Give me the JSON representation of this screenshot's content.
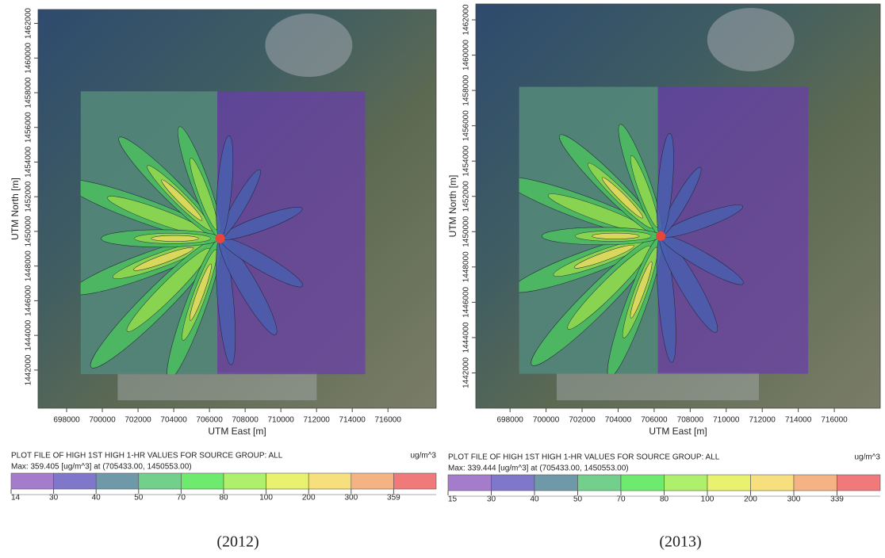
{
  "panels": [
    {
      "caption": "(2012)",
      "x_label": "UTM East [m]",
      "y_label": "UTM North [m]",
      "xlim": [
        696400,
        718700
      ],
      "ylim": [
        1439800,
        1462800
      ],
      "xticks": [
        698000,
        700000,
        702000,
        704000,
        706000,
        708000,
        710000,
        712000,
        714000,
        716000
      ],
      "yticks": [
        1442000,
        1444000,
        1446000,
        1448000,
        1450000,
        1452000,
        1454000,
        1456000,
        1458000,
        1460000,
        1462000
      ],
      "legend": {
        "title": "PLOT FILE OF HIGH 1ST HIGH 1-HR VALUES FOR SOURCE GROUP: ALL",
        "units": "ug/m^3",
        "max_note": "Max:  359.405  [ug/m^3]  at  (705433.00, 1450553.00)",
        "levels": [
          14,
          30,
          40,
          50,
          70,
          80,
          100,
          200,
          300,
          359
        ],
        "colors": [
          "#a57ccc",
          "#7f77c9",
          "#6f98a8",
          "#72cf8c",
          "#6eea6e",
          "#aef06c",
          "#e9f26e",
          "#f6df7c",
          "#f5b384",
          "#f07a7a"
        ]
      }
    },
    {
      "caption": "(2013)",
      "x_label": "UTM East [m]",
      "y_label": "UTM North [m]",
      "xlim": [
        696100,
        718550
      ],
      "ylim": [
        1440000,
        1462900
      ],
      "xticks": [
        698000,
        700000,
        702000,
        704000,
        706000,
        708000,
        710000,
        712000,
        714000,
        716000
      ],
      "yticks": [
        1442000,
        1444000,
        1446000,
        1448000,
        1450000,
        1452000,
        1454000,
        1456000,
        1458000,
        1460000,
        1462000
      ],
      "legend": {
        "title": "PLOT FILE OF HIGH 1ST HIGH 1-HR VALUES FOR SOURCE GROUP: ALL",
        "units": "ug/m^3",
        "max_note": "Max:  339.444  [ug/m^3]  at  (705433.00, 1450553.00)",
        "levels": [
          15,
          30,
          40,
          50,
          70,
          80,
          100,
          200,
          300,
          339
        ],
        "colors": [
          "#a57ccc",
          "#7f77c9",
          "#6f98a8",
          "#72cf8c",
          "#6eea6e",
          "#aef06c",
          "#e9f26e",
          "#f6df7c",
          "#f5b384",
          "#f07a7a"
        ]
      }
    }
  ]
}
